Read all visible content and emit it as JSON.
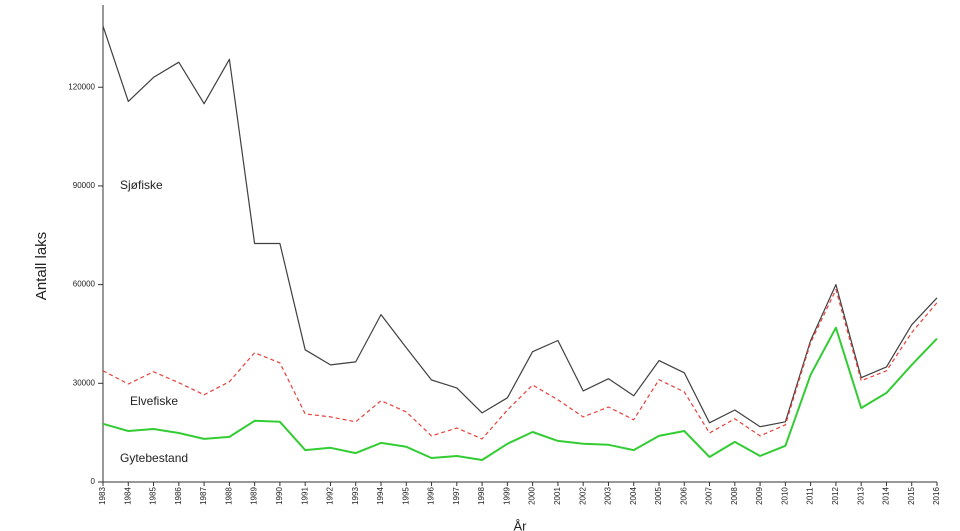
{
  "chart_data": {
    "type": "line",
    "y_label": "Antall laks",
    "x_label": "År",
    "categories": [
      "1983",
      "1984",
      "1985",
      "1986",
      "1987",
      "1988",
      "1989",
      "1990",
      "1991",
      "1992",
      "1993",
      "1994",
      "1995",
      "1996",
      "1997",
      "1998",
      "1999",
      "2000",
      "2001",
      "2002",
      "2003",
      "2004",
      "2005",
      "2006",
      "2007",
      "2008",
      "2009",
      "2010",
      "2011",
      "2012",
      "2013",
      "2014",
      "2015",
      "2016"
    ],
    "series": [
      {
        "name": "Sjøfiske",
        "color": "#404040",
        "linestyle": "solid",
        "values": [
          138600,
          115700,
          123000,
          127600,
          115000,
          128500,
          72500,
          72500,
          40200,
          35600,
          36500,
          50900,
          40800,
          31000,
          28600,
          21000,
          25600,
          39600,
          43000,
          27700,
          31400,
          26200,
          36900,
          33200,
          18000,
          21900,
          16800,
          18300,
          43000,
          60000,
          31700,
          35000,
          47800,
          56000
        ]
      },
      {
        "name": "Elvefiske",
        "color": "#e8403a",
        "linestyle": "dashed",
        "values": [
          33800,
          29800,
          33500,
          30200,
          26500,
          30500,
          39300,
          36200,
          20700,
          19800,
          18300,
          24700,
          21300,
          14000,
          16400,
          13100,
          21900,
          29500,
          25000,
          19800,
          22800,
          18900,
          31100,
          27400,
          14900,
          19200,
          14000,
          17400,
          42300,
          58500,
          30800,
          33800,
          45400,
          54500
        ]
      },
      {
        "name": "Gytebestand",
        "color": "#33cc33",
        "linestyle": "solid",
        "values": [
          17700,
          15500,
          16100,
          14900,
          13100,
          13700,
          18600,
          18300,
          9700,
          10400,
          8800,
          11900,
          10700,
          7300,
          7900,
          6700,
          11600,
          15200,
          12500,
          11600,
          11300,
          9700,
          14000,
          15500,
          7600,
          12200,
          7900,
          11000,
          32600,
          46900,
          22500,
          27100,
          35600,
          43600
        ]
      }
    ],
    "ylim": [
      0,
      145000
    ],
    "yticks": [
      0,
      30000,
      60000,
      90000,
      120000
    ],
    "grid": false
  }
}
